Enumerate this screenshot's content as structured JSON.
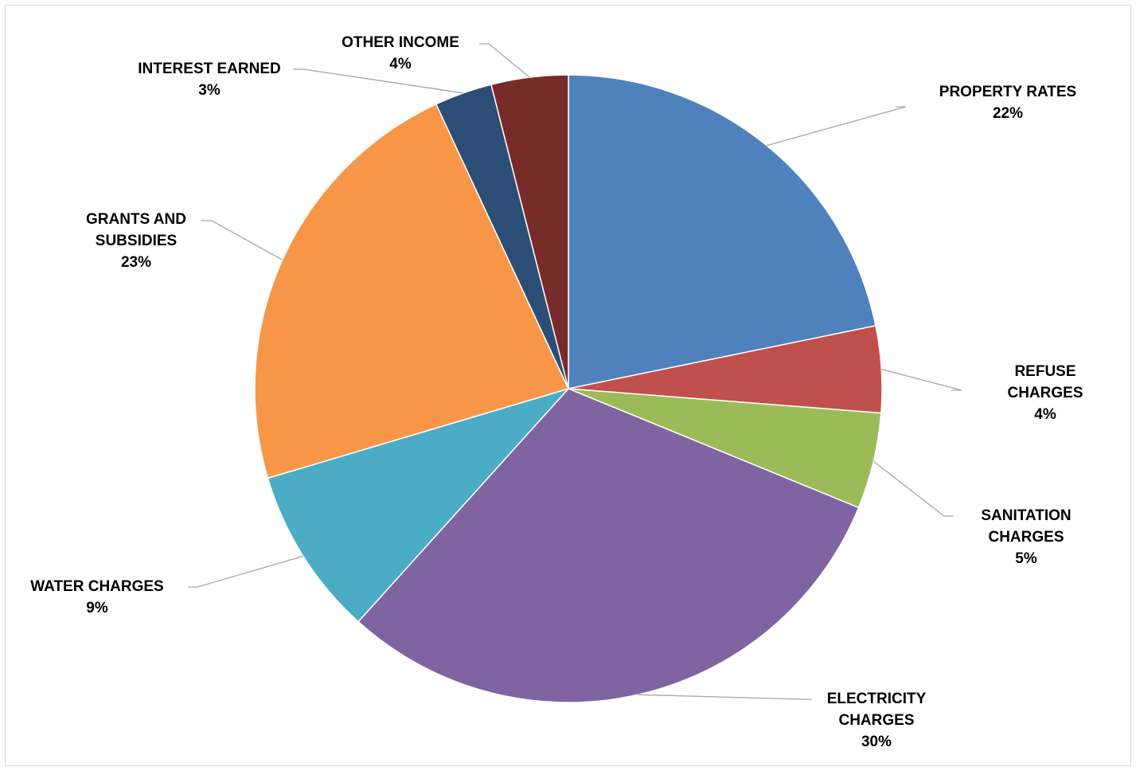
{
  "chart_data": {
    "type": "pie",
    "title": "",
    "slices": [
      {
        "label": "PROPERTY RATES",
        "label_lines": [
          "PROPERTY RATES"
        ],
        "pct_text": "22%",
        "value": 22.0,
        "color": "#4F81BD"
      },
      {
        "label": "REFUSE CHARGES",
        "label_lines": [
          "REFUSE",
          "CHARGES"
        ],
        "pct_text": "4%",
        "value": 4.5,
        "color": "#C0504D"
      },
      {
        "label": "SANITATION CHARGES",
        "label_lines": [
          "SANITATION",
          "CHARGES"
        ],
        "pct_text": "5%",
        "value": 5.0,
        "color": "#9BBB59"
      },
      {
        "label": "ELECTRICITY CHARGES",
        "label_lines": [
          "ELECTRICITY",
          "CHARGES"
        ],
        "pct_text": "30%",
        "value": 30.8,
        "color": "#8064A2"
      },
      {
        "label": "WATER CHARGES",
        "label_lines": [
          "WATER CHARGES"
        ],
        "pct_text": "9%",
        "value": 8.8,
        "color": "#4BACC6"
      },
      {
        "label": "GRANTS AND SUBSIDIES",
        "label_lines": [
          "GRANTS AND",
          "SUBSIDIES"
        ],
        "pct_text": "23%",
        "value": 22.9,
        "color": "#F79646"
      },
      {
        "label": "INTEREST EARNED",
        "label_lines": [
          "INTEREST EARNED"
        ],
        "pct_text": "3%",
        "value": 3.0,
        "color": "#2C4D75"
      },
      {
        "label": "OTHER INCOME",
        "label_lines": [
          "OTHER INCOME"
        ],
        "pct_text": "4%",
        "value": 4.0,
        "color": "#772C2A"
      }
    ],
    "legend": "none",
    "data_labels": "outside with leader lines"
  }
}
